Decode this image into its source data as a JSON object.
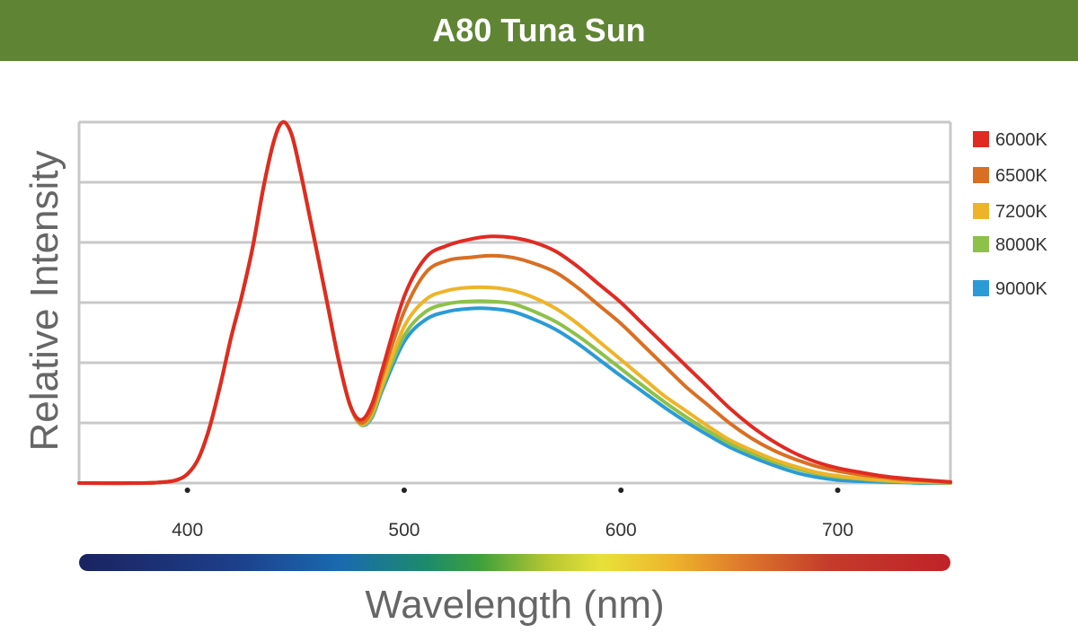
{
  "colors": {
    "title_bar": "#5f8534",
    "grid": "#c8c8c8",
    "axis_text": "#333333",
    "axis_title": "#666666"
  },
  "chart_data": {
    "type": "line",
    "title": "A80 Tuna Sun",
    "xlabel": "Wavelength (nm)",
    "ylabel": "Relative Intensity",
    "xlim": [
      350,
      752
    ],
    "ylim": [
      0,
      6
    ],
    "x_ticks": [
      400,
      500,
      600,
      700
    ],
    "grid": true,
    "legend_position": "right",
    "spectrum_bar": true,
    "x": [
      350,
      380,
      390,
      395,
      400,
      405,
      410,
      415,
      420,
      425,
      430,
      435,
      440,
      444,
      448,
      452,
      456,
      460,
      465,
      470,
      475,
      480,
      485,
      490,
      500,
      510,
      520,
      530,
      540,
      550,
      560,
      570,
      580,
      590,
      600,
      610,
      620,
      630,
      640,
      650,
      660,
      670,
      680,
      690,
      700,
      710,
      720,
      730,
      740,
      752
    ],
    "series": [
      {
        "name": "6000K",
        "color": "#e02b22",
        "values": [
          0,
          0,
          0.02,
          0.05,
          0.15,
          0.4,
          0.9,
          1.6,
          2.4,
          3.1,
          3.9,
          4.9,
          5.7,
          6.0,
          5.8,
          5.2,
          4.5,
          3.8,
          2.9,
          2.0,
          1.3,
          1.05,
          1.3,
          1.9,
          3.1,
          3.75,
          3.95,
          4.05,
          4.1,
          4.08,
          4.0,
          3.85,
          3.6,
          3.3,
          3.0,
          2.65,
          2.3,
          1.95,
          1.6,
          1.25,
          0.95,
          0.7,
          0.5,
          0.35,
          0.25,
          0.18,
          0.12,
          0.08,
          0.05,
          0.02
        ]
      },
      {
        "name": "6500K",
        "color": "#d96f23",
        "values": [
          0,
          0,
          0.02,
          0.05,
          0.15,
          0.4,
          0.9,
          1.6,
          2.4,
          3.1,
          3.9,
          4.9,
          5.7,
          6.0,
          5.8,
          5.2,
          4.5,
          3.8,
          2.9,
          2.0,
          1.3,
          1.0,
          1.2,
          1.8,
          2.85,
          3.5,
          3.7,
          3.75,
          3.78,
          3.75,
          3.65,
          3.5,
          3.25,
          2.95,
          2.65,
          2.3,
          1.95,
          1.6,
          1.3,
          1.0,
          0.75,
          0.55,
          0.4,
          0.28,
          0.2,
          0.14,
          0.1,
          0.06,
          0.04,
          0.01
        ]
      },
      {
        "name": "7200K",
        "color": "#eeb429",
        "values": [
          0,
          0,
          0.02,
          0.05,
          0.15,
          0.4,
          0.9,
          1.6,
          2.4,
          3.1,
          3.9,
          4.9,
          5.7,
          6.0,
          5.8,
          5.2,
          4.5,
          3.8,
          2.9,
          2.0,
          1.3,
          0.98,
          1.15,
          1.65,
          2.6,
          3.05,
          3.2,
          3.25,
          3.25,
          3.2,
          3.08,
          2.9,
          2.65,
          2.35,
          2.05,
          1.75,
          1.45,
          1.2,
          0.95,
          0.72,
          0.55,
          0.4,
          0.28,
          0.18,
          0.12,
          0.08,
          0.05,
          0.03,
          0.02,
          0.01
        ]
      },
      {
        "name": "8000K",
        "color": "#8dc149",
        "values": [
          0,
          0,
          0.02,
          0.05,
          0.15,
          0.4,
          0.9,
          1.6,
          2.4,
          3.1,
          3.9,
          4.9,
          5.7,
          6.0,
          5.8,
          5.2,
          4.5,
          3.8,
          2.9,
          2.0,
          1.3,
          0.97,
          1.1,
          1.6,
          2.45,
          2.85,
          2.98,
          3.02,
          3.02,
          2.98,
          2.85,
          2.68,
          2.45,
          2.18,
          1.9,
          1.62,
          1.35,
          1.1,
          0.87,
          0.66,
          0.5,
          0.36,
          0.25,
          0.16,
          0.1,
          0.07,
          0.04,
          0.02,
          0.01,
          0.0
        ]
      },
      {
        "name": "9000K",
        "color": "#2b9bd6",
        "values": [
          0,
          0,
          0.02,
          0.05,
          0.15,
          0.4,
          0.9,
          1.6,
          2.4,
          3.1,
          3.9,
          4.9,
          5.7,
          6.0,
          5.8,
          5.2,
          4.5,
          3.8,
          2.9,
          2.0,
          1.3,
          0.97,
          1.08,
          1.55,
          2.35,
          2.72,
          2.85,
          2.9,
          2.9,
          2.85,
          2.72,
          2.55,
          2.32,
          2.05,
          1.78,
          1.52,
          1.26,
          1.02,
          0.8,
          0.6,
          0.44,
          0.3,
          0.18,
          0.1,
          0.05,
          0.03,
          0.02,
          0.01,
          0.0,
          0.0
        ]
      }
    ]
  }
}
